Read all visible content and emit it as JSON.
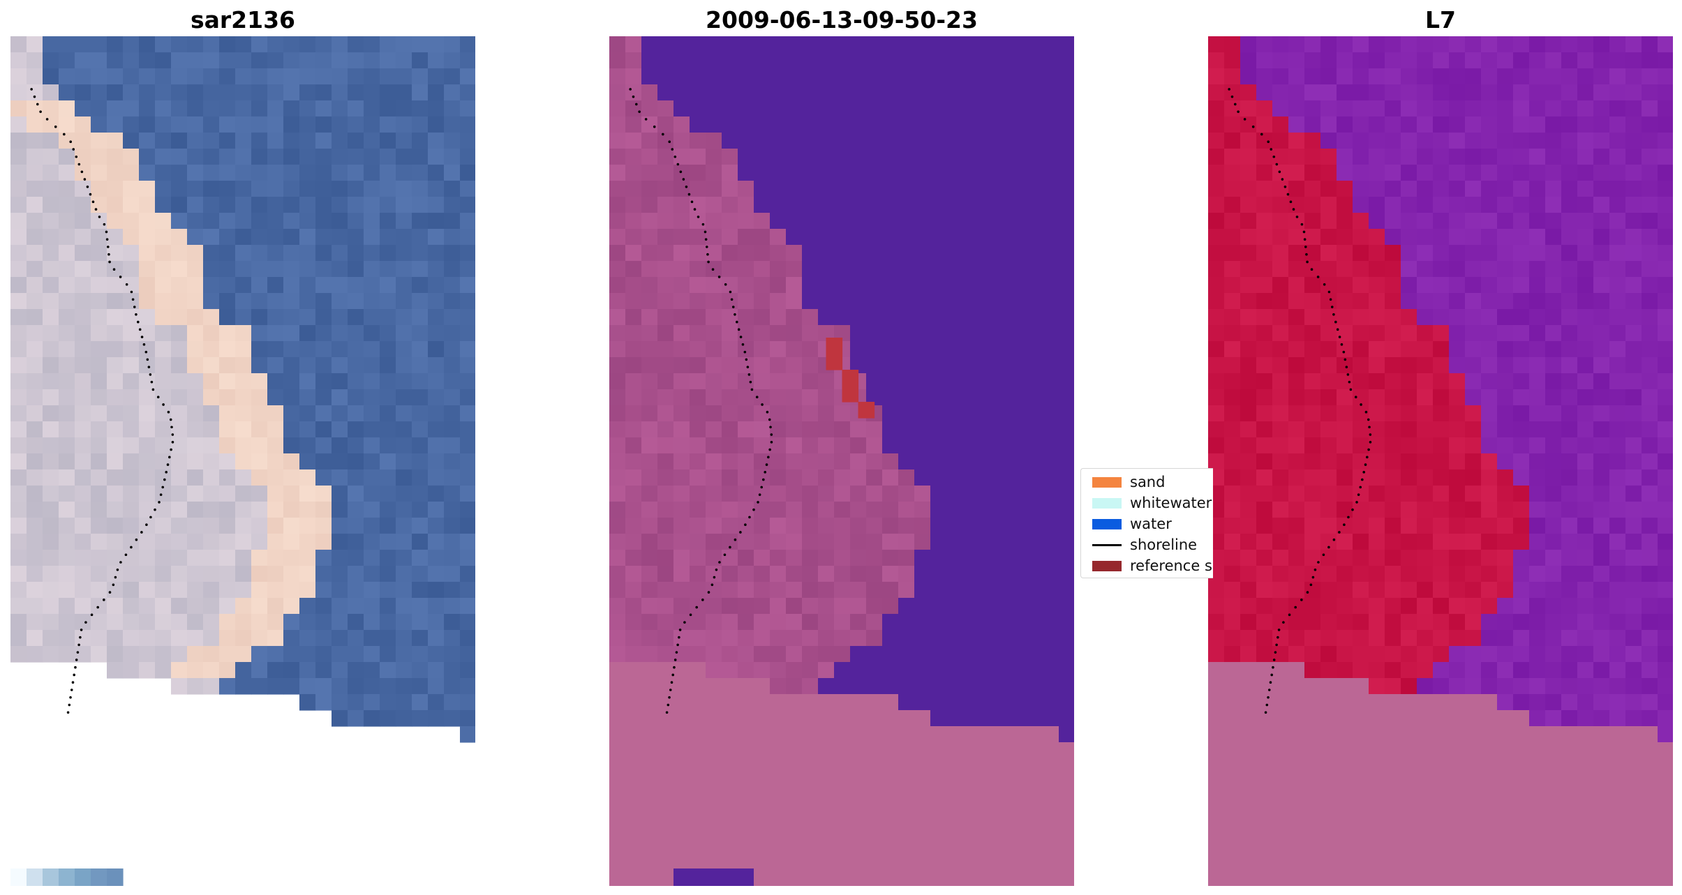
{
  "panels": [
    {
      "title": "sar2136",
      "kind": "rgb"
    },
    {
      "title": "2009-06-13-09-50-23",
      "kind": "classified"
    },
    {
      "title": "L7",
      "kind": "index"
    }
  ],
  "legend": {
    "items": [
      {
        "label": "sand",
        "color": "#f4843f",
        "type": "patch"
      },
      {
        "label": "whitewater",
        "color": "#c9f7f4",
        "type": "patch"
      },
      {
        "label": "water",
        "color": "#0a5ce0",
        "type": "patch"
      },
      {
        "label": "shoreline",
        "color": "#000000",
        "type": "line"
      },
      {
        "label": "reference s",
        "color": "#96282d",
        "type": "patch"
      }
    ]
  },
  "colors": {
    "rgb_water": "#3f5c9a",
    "rgb_sand": "#f0d4c4",
    "class_water": "#54239c",
    "class_land": "#a24a86",
    "class_nodata": "#bb6795",
    "class_reference": "#c0353e",
    "index_water": "#7a1aa6",
    "index_land": "#c30a3e",
    "index_nodata": "#bb6795"
  }
}
